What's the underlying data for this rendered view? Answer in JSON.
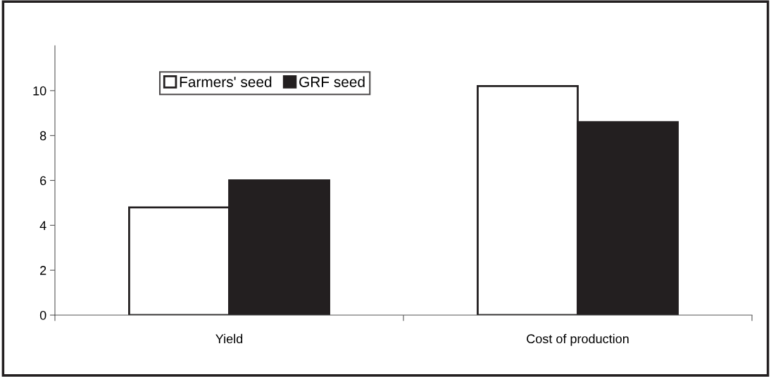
{
  "chart_data": {
    "type": "bar",
    "categories": [
      "Yield",
      "Cost of production"
    ],
    "series": [
      {
        "name": "Farmers' seed",
        "color": "#ffffff",
        "values": [
          4.8,
          10.2
        ]
      },
      {
        "name": "GRF seed",
        "color": "#231f20",
        "values": [
          6.0,
          8.6
        ]
      }
    ],
    "ylim": [
      0,
      12
    ],
    "yticks": [
      0,
      2,
      4,
      6,
      8,
      10
    ],
    "grid": false,
    "legend": "top left"
  }
}
